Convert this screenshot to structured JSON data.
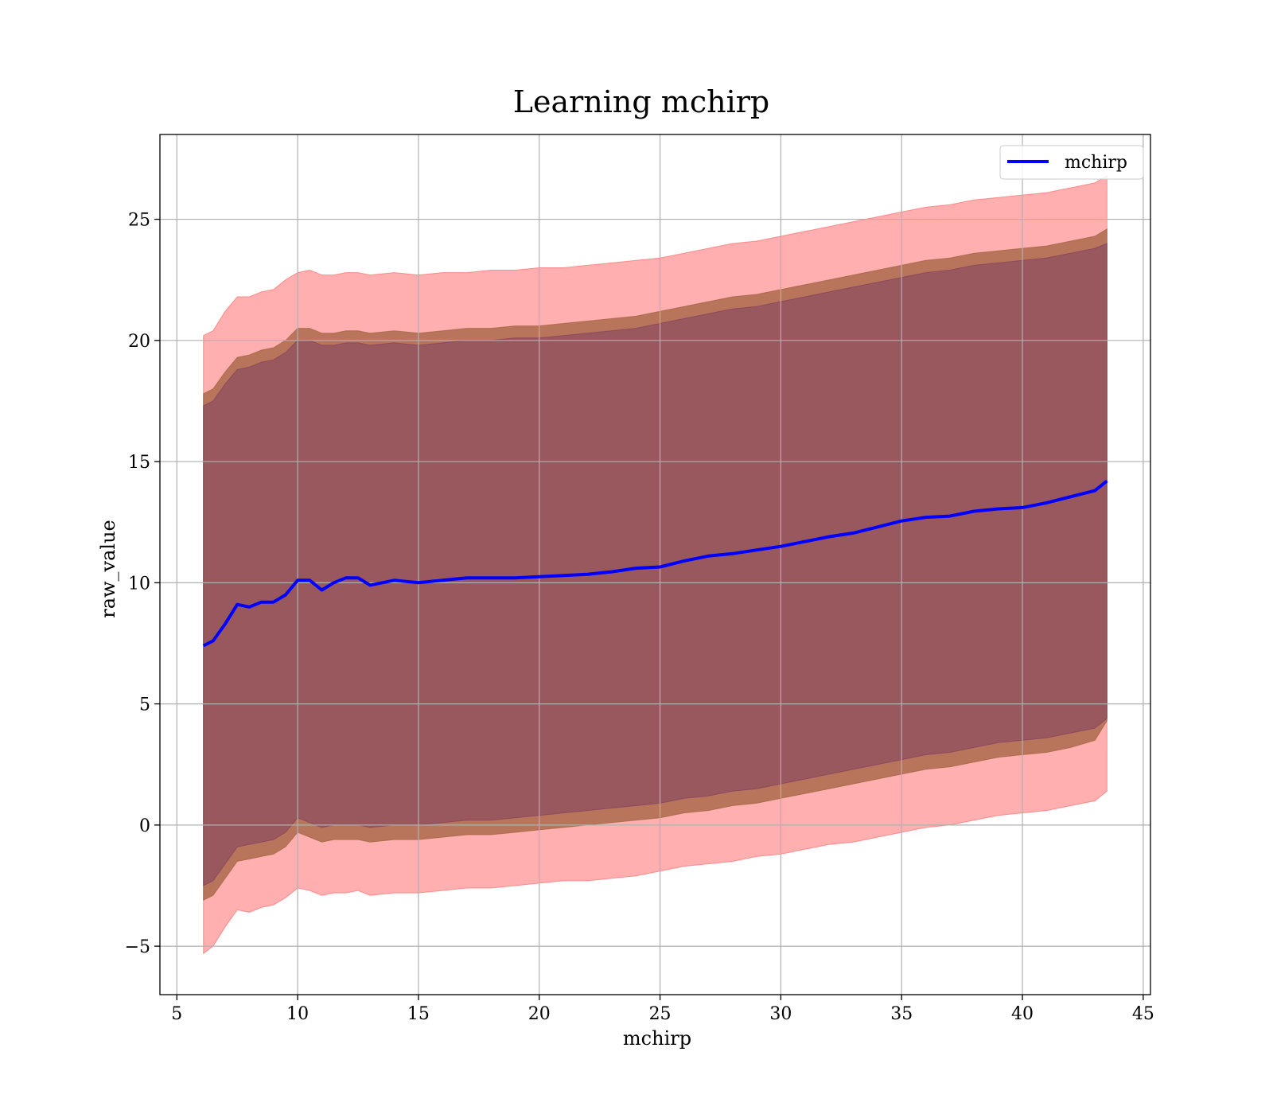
{
  "chart_data": {
    "type": "line",
    "title": "Learning mchirp",
    "xlabel": "mchirp",
    "ylabel": "raw_value",
    "xlim": [
      4.3,
      45.3
    ],
    "ylim": [
      -7.0,
      28.5
    ],
    "xticks": [
      5,
      10,
      15,
      20,
      25,
      30,
      35,
      40,
      45
    ],
    "xtick_labels": [
      "5",
      "10",
      "15",
      "20",
      "25",
      "30",
      "35",
      "40",
      "45"
    ],
    "yticks": [
      -5,
      0,
      5,
      10,
      15,
      20,
      25
    ],
    "ytick_labels": [
      "−5",
      "0",
      "5",
      "10",
      "15",
      "20",
      "25"
    ],
    "grid": true,
    "legend": {
      "placement": "top-right",
      "entries": [
        "mchirp"
      ]
    },
    "colors": {
      "line": "#0000ff",
      "outer_band": "#ff6e6e",
      "middle_band": "#a0623f",
      "inner_band": "#80405e"
    },
    "series": [
      {
        "name": "mchirp",
        "x": [
          6.1,
          6.5,
          7.0,
          7.5,
          8.0,
          8.5,
          9.0,
          9.5,
          10.0,
          10.5,
          11.0,
          11.5,
          12.0,
          12.5,
          13.0,
          14.0,
          15.0,
          16.0,
          17.0,
          18.0,
          19.0,
          20.0,
          21.0,
          22.0,
          23.0,
          24.0,
          25.0,
          26.0,
          27.0,
          28.0,
          29.0,
          30.0,
          31.0,
          32.0,
          33.0,
          34.0,
          35.0,
          36.0,
          37.0,
          38.0,
          39.0,
          40.0,
          41.0,
          42.0,
          43.0,
          43.5
        ],
        "y": [
          7.4,
          7.6,
          8.3,
          9.1,
          9.0,
          9.2,
          9.2,
          9.5,
          10.1,
          10.1,
          9.7,
          10.0,
          10.2,
          10.2,
          9.9,
          10.1,
          10.0,
          10.1,
          10.2,
          10.2,
          10.2,
          10.25,
          10.3,
          10.35,
          10.45,
          10.6,
          10.65,
          10.9,
          11.1,
          11.2,
          11.35,
          11.5,
          11.7,
          11.9,
          12.05,
          12.3,
          12.55,
          12.7,
          12.75,
          12.95,
          13.05,
          13.1,
          13.3,
          13.55,
          13.8,
          14.2
        ],
        "bands": [
          {
            "lower": [
              -5.3,
              -5.0,
              -4.2,
              -3.5,
              -3.6,
              -3.4,
              -3.3,
              -3.0,
              -2.6,
              -2.7,
              -2.9,
              -2.8,
              -2.8,
              -2.7,
              -2.9,
              -2.8,
              -2.8,
              -2.7,
              -2.6,
              -2.6,
              -2.5,
              -2.4,
              -2.3,
              -2.3,
              -2.2,
              -2.1,
              -1.9,
              -1.7,
              -1.6,
              -1.5,
              -1.3,
              -1.2,
              -1.0,
              -0.8,
              -0.7,
              -0.5,
              -0.3,
              -0.1,
              0.0,
              0.2,
              0.4,
              0.5,
              0.6,
              0.8,
              1.0,
              1.4
            ],
            "upper": [
              20.2,
              20.4,
              21.2,
              21.8,
              21.8,
              22.0,
              22.1,
              22.5,
              22.8,
              22.9,
              22.7,
              22.7,
              22.8,
              22.8,
              22.7,
              22.8,
              22.7,
              22.8,
              22.8,
              22.9,
              22.9,
              23.0,
              23.0,
              23.1,
              23.2,
              23.3,
              23.4,
              23.6,
              23.8,
              24.0,
              24.1,
              24.3,
              24.5,
              24.7,
              24.9,
              25.1,
              25.3,
              25.5,
              25.6,
              25.8,
              25.9,
              26.0,
              26.1,
              26.3,
              26.5,
              26.8
            ]
          },
          {
            "lower": [
              -3.1,
              -2.9,
              -2.2,
              -1.5,
              -1.4,
              -1.3,
              -1.2,
              -0.9,
              -0.3,
              -0.5,
              -0.7,
              -0.6,
              -0.6,
              -0.6,
              -0.7,
              -0.6,
              -0.6,
              -0.5,
              -0.4,
              -0.4,
              -0.3,
              -0.2,
              -0.1,
              0.0,
              0.1,
              0.2,
              0.3,
              0.5,
              0.6,
              0.8,
              0.9,
              1.1,
              1.3,
              1.5,
              1.7,
              1.9,
              2.1,
              2.3,
              2.4,
              2.6,
              2.8,
              2.9,
              3.0,
              3.2,
              3.5,
              4.3
            ],
            "upper": [
              17.8,
              18.0,
              18.7,
              19.3,
              19.4,
              19.6,
              19.7,
              20.0,
              20.5,
              20.5,
              20.3,
              20.3,
              20.4,
              20.4,
              20.3,
              20.4,
              20.3,
              20.4,
              20.5,
              20.5,
              20.6,
              20.6,
              20.7,
              20.8,
              20.9,
              21.0,
              21.2,
              21.4,
              21.6,
              21.8,
              21.9,
              22.1,
              22.3,
              22.5,
              22.7,
              22.9,
              23.1,
              23.3,
              23.4,
              23.6,
              23.7,
              23.8,
              23.9,
              24.1,
              24.3,
              24.6
            ]
          },
          {
            "lower": [
              -2.5,
              -2.3,
              -1.6,
              -0.9,
              -0.8,
              -0.7,
              -0.6,
              -0.3,
              0.3,
              0.1,
              -0.1,
              0.0,
              0.0,
              0.0,
              -0.1,
              0.0,
              0.0,
              0.1,
              0.2,
              0.2,
              0.3,
              0.4,
              0.5,
              0.6,
              0.7,
              0.8,
              0.9,
              1.1,
              1.2,
              1.4,
              1.5,
              1.7,
              1.9,
              2.1,
              2.3,
              2.5,
              2.7,
              2.9,
              3.0,
              3.2,
              3.4,
              3.5,
              3.6,
              3.8,
              4.0,
              4.4
            ],
            "upper": [
              17.3,
              17.5,
              18.2,
              18.8,
              18.9,
              19.1,
              19.2,
              19.5,
              20.0,
              20.0,
              19.8,
              19.8,
              19.9,
              19.9,
              19.8,
              19.9,
              19.8,
              19.9,
              20.0,
              20.0,
              20.1,
              20.1,
              20.2,
              20.3,
              20.4,
              20.5,
              20.7,
              20.9,
              21.1,
              21.3,
              21.4,
              21.6,
              21.8,
              22.0,
              22.2,
              22.4,
              22.6,
              22.8,
              22.9,
              23.1,
              23.2,
              23.3,
              23.4,
              23.6,
              23.8,
              24.0
            ]
          }
        ]
      }
    ]
  }
}
